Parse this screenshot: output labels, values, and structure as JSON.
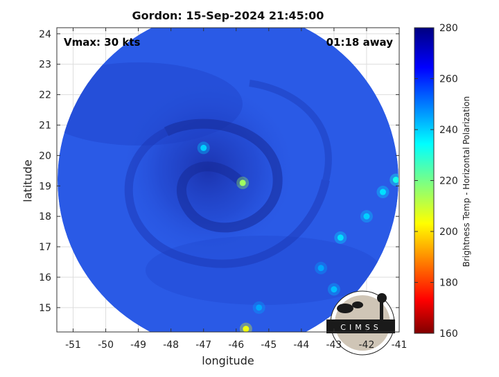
{
  "chart_data": {
    "type": "heatmap",
    "title": "Gordon: 15-Sep-2024 21:45:00",
    "xlabel": "longitude",
    "ylabel": "latitude",
    "xlim": [
      -51.5,
      -41
    ],
    "ylim": [
      14.2,
      24.2
    ],
    "xticks": [
      -51,
      -50,
      -49,
      -48,
      -47,
      -46,
      -45,
      -44,
      -43,
      -42,
      -41
    ],
    "yticks": [
      15,
      16,
      17,
      18,
      19,
      20,
      21,
      22,
      23,
      24
    ],
    "grid": true,
    "colorbar": {
      "label": "Brightness Temp - Horizontal Polarization",
      "min": 160,
      "max": 280,
      "ticks": [
        160,
        180,
        200,
        220,
        240,
        260,
        280
      ],
      "colormap": "jet"
    },
    "annotations": {
      "vmax": "Vmax: 30 kts",
      "time_offset": "01:18 away"
    },
    "storm_center": {
      "lon": -45.8,
      "lat": 19.1
    },
    "features": [
      {
        "lon": -45.8,
        "lat": 19.1,
        "value": 215
      },
      {
        "lon": -47.0,
        "lat": 20.25,
        "value": 240
      },
      {
        "lon": -45.7,
        "lat": 14.3,
        "value": 205
      },
      {
        "lon": -41.1,
        "lat": 19.2,
        "value": 232
      },
      {
        "lon": -41.5,
        "lat": 18.8,
        "value": 238
      },
      {
        "lon": -42.0,
        "lat": 18.0,
        "value": 240
      },
      {
        "lon": -42.8,
        "lat": 17.3,
        "value": 238
      },
      {
        "lon": -43.4,
        "lat": 16.3,
        "value": 245
      },
      {
        "lon": -43.0,
        "lat": 15.6,
        "value": 242
      },
      {
        "lon": -45.3,
        "lat": 15.0,
        "value": 245
      }
    ],
    "logo": "CIMSS"
  },
  "colors": {
    "background": "#2a5ae6",
    "dark_band": "#1c37b8"
  }
}
